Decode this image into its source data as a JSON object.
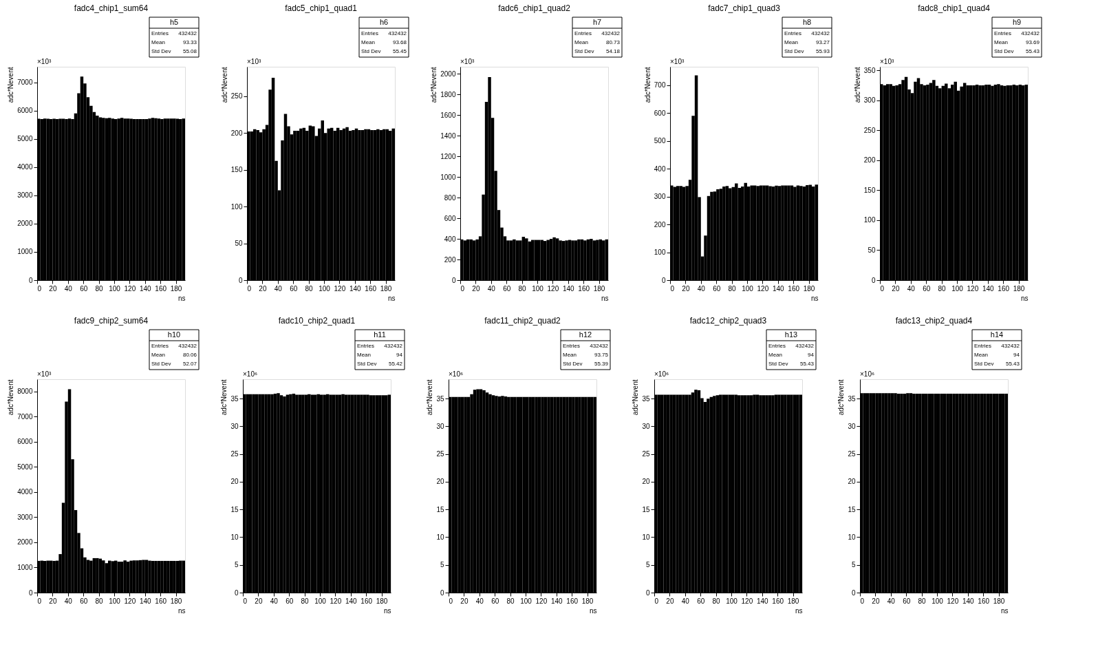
{
  "chart_data": [
    {
      "type": "histogram",
      "title": "fadc4_chip1_sum64",
      "xlabel": "ns",
      "ylabel": "adc*Nevent",
      "color": "#000000",
      "bins": [
        0,
        4,
        8,
        12,
        16,
        20,
        24,
        28,
        32,
        36,
        40,
        44,
        48,
        52,
        56,
        60,
        64,
        68,
        72,
        76,
        80,
        84,
        88,
        92,
        96,
        100,
        104,
        108,
        112,
        116,
        120,
        124,
        128,
        132,
        136,
        140,
        144,
        148,
        152,
        156,
        160,
        164,
        168,
        172,
        176,
        180,
        184,
        188,
        192
      ],
      "values": [
        5710,
        5700,
        5720,
        5710,
        5700,
        5710,
        5700,
        5710,
        5710,
        5700,
        5720,
        5700,
        5900,
        6610,
        7200,
        6960,
        6470,
        6170,
        5950,
        5820,
        5760,
        5740,
        5730,
        5740,
        5720,
        5700,
        5720,
        5740,
        5720,
        5720,
        5710,
        5700,
        5700,
        5700,
        5700,
        5700,
        5720,
        5740,
        5730,
        5720,
        5700,
        5720,
        5720,
        5720,
        5720,
        5710,
        5700,
        5720
      ],
      "xlim": [
        0,
        192
      ],
      "xticks": [
        0,
        20,
        40,
        60,
        80,
        100,
        120,
        140,
        160,
        180
      ],
      "ylim": [
        0,
        7550
      ],
      "yticks": [
        0,
        1000,
        2000,
        3000,
        4000,
        5000,
        6000,
        7000
      ],
      "annotations": [
        "×10³",
        "h5",
        "Entries",
        "432432",
        "Mean",
        "93.33",
        "Std Dev",
        "55.08"
      ]
    },
    {
      "type": "histogram",
      "title": "fadc5_chip1_quad1",
      "xlabel": "ns",
      "ylabel": "adc*Nevent",
      "color": "#000000",
      "bins": [
        0,
        4,
        8,
        12,
        16,
        20,
        24,
        28,
        32,
        36,
        40,
        44,
        48,
        52,
        56,
        60,
        64,
        68,
        72,
        76,
        80,
        84,
        88,
        92,
        96,
        100,
        104,
        108,
        112,
        116,
        120,
        124,
        128,
        132,
        136,
        140,
        144,
        148,
        152,
        156,
        160,
        164,
        168,
        172,
        176,
        180,
        184,
        188,
        192
      ],
      "values": [
        202,
        202,
        205,
        204,
        201,
        205,
        211,
        259,
        275,
        162,
        122,
        190,
        226,
        209,
        198,
        203,
        203,
        206,
        207,
        203,
        210,
        209,
        196,
        206,
        217,
        200,
        206,
        207,
        203,
        207,
        204,
        206,
        208,
        203,
        204,
        206,
        204,
        204,
        205,
        205,
        204,
        204,
        205,
        204,
        205,
        205,
        203,
        206
      ],
      "xlim": [
        0,
        192
      ],
      "xticks": [
        0,
        20,
        40,
        60,
        80,
        100,
        120,
        140,
        160,
        180
      ],
      "ylim": [
        0,
        290
      ],
      "yticks": [
        0,
        50,
        100,
        150,
        200,
        250
      ],
      "annotations": [
        "×10³",
        "h6",
        "Entries",
        "432432",
        "Mean",
        "93.68",
        "Std Dev",
        "55.45"
      ]
    },
    {
      "type": "histogram",
      "title": "fadc6_chip1_quad2",
      "xlabel": "ns",
      "ylabel": "adc*Nevent",
      "color": "#000000",
      "bins": [
        0,
        4,
        8,
        12,
        16,
        20,
        24,
        28,
        32,
        36,
        40,
        44,
        48,
        52,
        56,
        60,
        64,
        68,
        72,
        76,
        80,
        84,
        88,
        92,
        96,
        100,
        104,
        108,
        112,
        116,
        120,
        124,
        128,
        132,
        136,
        140,
        144,
        148,
        152,
        156,
        160,
        164,
        168,
        172,
        176,
        180,
        184,
        188,
        192
      ],
      "values": [
        395,
        385,
        395,
        395,
        385,
        395,
        425,
        830,
        1730,
        1970,
        1575,
        1060,
        680,
        510,
        425,
        385,
        385,
        395,
        385,
        385,
        420,
        405,
        375,
        390,
        390,
        390,
        390,
        380,
        390,
        400,
        415,
        405,
        385,
        380,
        385,
        390,
        385,
        385,
        395,
        395,
        385,
        395,
        400,
        385,
        390,
        395,
        385,
        395
      ],
      "xlim": [
        0,
        192
      ],
      "xticks": [
        0,
        20,
        40,
        60,
        80,
        100,
        120,
        140,
        160,
        180
      ],
      "ylim": [
        0,
        2070
      ],
      "yticks": [
        0,
        200,
        400,
        600,
        800,
        1000,
        1200,
        1400,
        1600,
        1800,
        2000
      ],
      "annotations": [
        "×10³",
        "h7",
        "Entries",
        "432432",
        "Mean",
        "80.73",
        "Std Dev",
        "54.18"
      ]
    },
    {
      "type": "histogram",
      "title": "fadc7_chip1_quad3",
      "xlabel": "ns",
      "ylabel": "adc*Nevent",
      "color": "#000000",
      "bins": [
        0,
        4,
        8,
        12,
        16,
        20,
        24,
        28,
        32,
        36,
        40,
        44,
        48,
        52,
        56,
        60,
        64,
        68,
        72,
        76,
        80,
        84,
        88,
        92,
        96,
        100,
        104,
        108,
        112,
        116,
        120,
        124,
        128,
        132,
        136,
        140,
        144,
        148,
        152,
        156,
        160,
        164,
        168,
        172,
        176,
        180,
        184,
        188,
        192
      ],
      "values": [
        340,
        335,
        338,
        338,
        335,
        338,
        360,
        590,
        735,
        298,
        85,
        160,
        302,
        317,
        318,
        326,
        328,
        336,
        338,
        330,
        334,
        347,
        331,
        336,
        349,
        336,
        340,
        340,
        338,
        340,
        340,
        340,
        337,
        336,
        339,
        338,
        340,
        340,
        340,
        340,
        335,
        340,
        338,
        336,
        341,
        342,
        336,
        343
      ],
      "xlim": [
        0,
        192
      ],
      "xticks": [
        0,
        20,
        40,
        60,
        80,
        100,
        120,
        140,
        160,
        180
      ],
      "ylim": [
        0,
        766
      ],
      "yticks": [
        0,
        100,
        200,
        300,
        400,
        500,
        600,
        700
      ],
      "annotations": [
        "×10³",
        "h8",
        "Entries",
        "432432",
        "Mean",
        "93.27",
        "Std Dev",
        "55.93"
      ]
    },
    {
      "type": "histogram",
      "title": "fadc8_chip1_quad4",
      "xlabel": "ns",
      "ylabel": "adc*Nevent",
      "color": "#000000",
      "bins": [
        0,
        4,
        8,
        12,
        16,
        20,
        24,
        28,
        32,
        36,
        40,
        44,
        48,
        52,
        56,
        60,
        64,
        68,
        72,
        76,
        80,
        84,
        88,
        92,
        96,
        100,
        104,
        108,
        112,
        116,
        120,
        124,
        128,
        132,
        136,
        140,
        144,
        148,
        152,
        156,
        160,
        164,
        168,
        172,
        176,
        180,
        184,
        188,
        192
      ],
      "values": [
        327,
        325,
        327,
        327,
        324,
        325,
        327,
        334,
        339,
        318,
        312,
        331,
        337,
        327,
        325,
        326,
        329,
        334,
        324,
        320,
        324,
        328,
        320,
        326,
        331,
        316,
        323,
        329,
        325,
        325,
        325,
        326,
        325,
        325,
        326,
        326,
        324,
        326,
        327,
        325,
        324,
        325,
        325,
        326,
        325,
        326,
        325,
        326
      ],
      "xlim": [
        0,
        192
      ],
      "xticks": [
        0,
        20,
        40,
        60,
        80,
        100,
        120,
        140,
        160,
        180
      ],
      "ylim": [
        0,
        356
      ],
      "yticks": [
        0,
        50,
        100,
        150,
        200,
        250,
        300,
        350
      ],
      "annotations": [
        "×10³",
        "h9",
        "Entries",
        "432432",
        "Mean",
        "93.69",
        "Std Dev",
        "55.43"
      ]
    },
    {
      "type": "histogram",
      "title": "fadc9_chip2_sum64",
      "xlabel": "ns",
      "ylabel": "adc*Nevent",
      "color": "#000000",
      "bins": [
        0,
        4,
        8,
        12,
        16,
        20,
        24,
        28,
        32,
        36,
        40,
        44,
        48,
        52,
        56,
        60,
        64,
        68,
        72,
        76,
        80,
        84,
        88,
        92,
        96,
        100,
        104,
        108,
        112,
        116,
        120,
        124,
        128,
        132,
        136,
        140,
        144,
        148,
        152,
        156,
        160,
        164,
        168,
        172,
        176,
        180,
        184,
        188,
        192
      ],
      "values": [
        1260,
        1270,
        1260,
        1270,
        1270,
        1260,
        1270,
        1530,
        3570,
        7590,
        8080,
        5300,
        3280,
        2370,
        1760,
        1400,
        1300,
        1270,
        1370,
        1370,
        1350,
        1280,
        1170,
        1270,
        1250,
        1270,
        1230,
        1230,
        1280,
        1230,
        1270,
        1280,
        1280,
        1290,
        1300,
        1300,
        1270,
        1260,
        1260,
        1260,
        1260,
        1260,
        1260,
        1260,
        1260,
        1260,
        1270,
        1270
      ],
      "xlim": [
        0,
        192
      ],
      "xticks": [
        0,
        20,
        40,
        60,
        80,
        100,
        120,
        140,
        160,
        180
      ],
      "ylim": [
        0,
        8480
      ],
      "yticks": [
        0,
        1000,
        2000,
        3000,
        4000,
        5000,
        6000,
        7000,
        8000
      ],
      "annotations": [
        "×10³",
        "h10",
        "Entries",
        "432432",
        "Mean",
        "80.06",
        "Std Dev",
        "52.07"
      ]
    },
    {
      "type": "histogram",
      "title": "fadc10_chip2_quad1",
      "xlabel": "ns",
      "ylabel": "adc*Nevent",
      "color": "#000000",
      "bins": [
        0,
        4,
        8,
        12,
        16,
        20,
        24,
        28,
        32,
        36,
        40,
        44,
        48,
        52,
        56,
        60,
        64,
        68,
        72,
        76,
        80,
        84,
        88,
        92,
        96,
        100,
        104,
        108,
        112,
        116,
        120,
        124,
        128,
        132,
        136,
        140,
        144,
        148,
        152,
        156,
        160,
        164,
        168,
        172,
        176,
        180,
        184,
        188,
        192
      ],
      "values": [
        35.8,
        35.8,
        35.8,
        35.8,
        35.8,
        35.8,
        35.8,
        35.8,
        35.8,
        35.8,
        35.9,
        36.0,
        35.6,
        35.4,
        35.7,
        35.8,
        35.9,
        35.7,
        35.7,
        35.7,
        35.7,
        35.8,
        35.7,
        35.7,
        35.8,
        35.7,
        35.7,
        35.8,
        35.7,
        35.7,
        35.7,
        35.7,
        35.8,
        35.7,
        35.7,
        35.7,
        35.7,
        35.7,
        35.7,
        35.7,
        35.7,
        35.6,
        35.6,
        35.6,
        35.6,
        35.6,
        35.6,
        35.7
      ],
      "xlim": [
        0,
        192
      ],
      "xticks": [
        0,
        20,
        40,
        60,
        80,
        100,
        120,
        140,
        160,
        180
      ],
      "ylim": [
        0,
        38.5
      ],
      "yticks": [
        0,
        5,
        10,
        15,
        20,
        25,
        30,
        35
      ],
      "annotations": [
        "×10⁶",
        "h11",
        "Entries",
        "432432",
        "Mean",
        "94",
        "Std Dev",
        "55.42"
      ]
    },
    {
      "type": "histogram",
      "title": "fadc11_chip2_quad2",
      "xlabel": "ns",
      "ylabel": "adc*Nevent",
      "color": "#000000",
      "bins": [
        0,
        4,
        8,
        12,
        16,
        20,
        24,
        28,
        32,
        36,
        40,
        44,
        48,
        52,
        56,
        60,
        64,
        68,
        72,
        76,
        80,
        84,
        88,
        92,
        96,
        100,
        104,
        108,
        112,
        116,
        120,
        124,
        128,
        132,
        136,
        140,
        144,
        148,
        152,
        156,
        160,
        164,
        168,
        172,
        176,
        180,
        184,
        188,
        192
      ],
      "values": [
        35.3,
        35.3,
        35.3,
        35.3,
        35.3,
        35.3,
        35.3,
        35.8,
        36.6,
        36.7,
        36.7,
        36.5,
        36.1,
        35.8,
        35.6,
        35.5,
        35.4,
        35.5,
        35.4,
        35.3,
        35.3,
        35.3,
        35.3,
        35.3,
        35.3,
        35.3,
        35.3,
        35.3,
        35.3,
        35.3,
        35.3,
        35.3,
        35.3,
        35.3,
        35.3,
        35.3,
        35.3,
        35.3,
        35.3,
        35.3,
        35.3,
        35.3,
        35.3,
        35.3,
        35.3,
        35.3,
        35.3,
        35.3
      ],
      "xlim": [
        0,
        192
      ],
      "xticks": [
        0,
        20,
        40,
        60,
        80,
        100,
        120,
        140,
        160,
        180
      ],
      "ylim": [
        0,
        38.5
      ],
      "yticks": [
        0,
        5,
        10,
        15,
        20,
        25,
        30,
        35
      ],
      "annotations": [
        "×10⁶",
        "h12",
        "Entries",
        "432432",
        "Mean",
        "93.75",
        "Std Dev",
        "55.39"
      ]
    },
    {
      "type": "histogram",
      "title": "fadc12_chip2_quad3",
      "xlabel": "ns",
      "ylabel": "adc*Nevent",
      "color": "#000000",
      "bins": [
        0,
        4,
        8,
        12,
        16,
        20,
        24,
        28,
        32,
        36,
        40,
        44,
        48,
        52,
        56,
        60,
        64,
        68,
        72,
        76,
        80,
        84,
        88,
        92,
        96,
        100,
        104,
        108,
        112,
        116,
        120,
        124,
        128,
        132,
        136,
        140,
        144,
        148,
        152,
        156,
        160,
        164,
        168,
        172,
        176,
        180,
        184,
        188,
        192
      ],
      "values": [
        35.7,
        35.7,
        35.7,
        35.7,
        35.7,
        35.7,
        35.7,
        35.7,
        35.7,
        35.7,
        35.7,
        35.7,
        36.1,
        36.6,
        36.5,
        35.1,
        34.4,
        35.0,
        35.3,
        35.5,
        35.6,
        35.7,
        35.7,
        35.7,
        35.7,
        35.7,
        35.7,
        35.6,
        35.6,
        35.6,
        35.6,
        35.6,
        35.7,
        35.7,
        35.6,
        35.6,
        35.6,
        35.6,
        35.6,
        35.7,
        35.7,
        35.7,
        35.7,
        35.7,
        35.7,
        35.7,
        35.7,
        35.7
      ],
      "xlim": [
        0,
        192
      ],
      "xticks": [
        0,
        20,
        40,
        60,
        80,
        100,
        120,
        140,
        160,
        180
      ],
      "ylim": [
        0,
        38.5
      ],
      "yticks": [
        0,
        5,
        10,
        15,
        20,
        25,
        30,
        35
      ],
      "annotations": [
        "×10⁶",
        "h13",
        "Entries",
        "432432",
        "Mean",
        "94",
        "Std Dev",
        "55.43"
      ]
    },
    {
      "type": "histogram",
      "title": "fadc13_chip2_quad4",
      "xlabel": "ns",
      "ylabel": "adc*Nevent",
      "color": "#000000",
      "bins": [
        0,
        4,
        8,
        12,
        16,
        20,
        24,
        28,
        32,
        36,
        40,
        44,
        48,
        52,
        56,
        60,
        64,
        68,
        72,
        76,
        80,
        84,
        88,
        92,
        96,
        100,
        104,
        108,
        112,
        116,
        120,
        124,
        128,
        132,
        136,
        140,
        144,
        148,
        152,
        156,
        160,
        164,
        168,
        172,
        176,
        180,
        184,
        188,
        192
      ],
      "values": [
        36.0,
        36.0,
        36.0,
        36.0,
        36.0,
        36.0,
        36.0,
        36.0,
        36.0,
        36.0,
        36.0,
        36.0,
        35.9,
        35.9,
        35.9,
        36.0,
        36.0,
        35.9,
        35.9,
        35.9,
        35.9,
        35.9,
        35.9,
        35.9,
        35.9,
        35.9,
        35.9,
        35.9,
        35.9,
        35.9,
        35.9,
        35.9,
        35.9,
        35.9,
        35.9,
        35.9,
        35.9,
        35.9,
        35.9,
        35.9,
        35.9,
        35.9,
        35.9,
        35.9,
        35.9,
        35.9,
        35.9,
        35.9
      ],
      "xlim": [
        0,
        192
      ],
      "xticks": [
        0,
        20,
        40,
        60,
        80,
        100,
        120,
        140,
        160,
        180
      ],
      "ylim": [
        0,
        38.5
      ],
      "yticks": [
        0,
        5,
        10,
        15,
        20,
        25,
        30,
        35
      ],
      "annotations": [
        "×10⁶",
        "h14",
        "Entries",
        "432432",
        "Mean",
        "94",
        "Std Dev",
        "55.43"
      ]
    }
  ]
}
